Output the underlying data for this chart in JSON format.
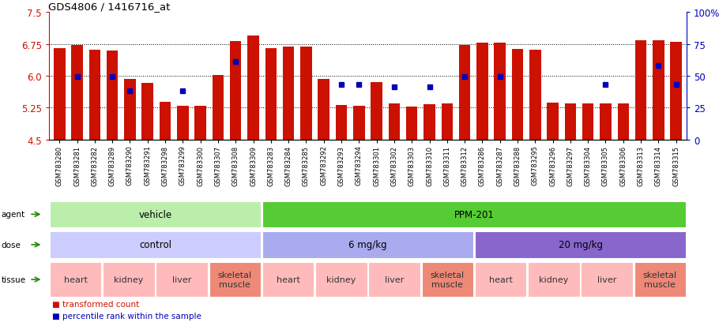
{
  "title": "GDS4806 / 1416716_at",
  "samples": [
    "GSM783280",
    "GSM783281",
    "GSM783282",
    "GSM783289",
    "GSM783290",
    "GSM783291",
    "GSM783298",
    "GSM783299",
    "GSM783300",
    "GSM783307",
    "GSM783308",
    "GSM783309",
    "GSM783283",
    "GSM783284",
    "GSM783285",
    "GSM783292",
    "GSM783293",
    "GSM783294",
    "GSM783301",
    "GSM783302",
    "GSM783303",
    "GSM783310",
    "GSM783311",
    "GSM783312",
    "GSM783286",
    "GSM783287",
    "GSM783288",
    "GSM783295",
    "GSM783296",
    "GSM783297",
    "GSM783304",
    "GSM783305",
    "GSM783306",
    "GSM783313",
    "GSM783314",
    "GSM783315"
  ],
  "bar_values": [
    6.65,
    6.73,
    6.62,
    6.6,
    5.92,
    5.83,
    5.38,
    5.3,
    5.29,
    6.01,
    6.82,
    6.95,
    6.65,
    6.69,
    6.68,
    5.92,
    5.31,
    5.3,
    5.85,
    5.34,
    5.27,
    5.32,
    5.34,
    6.73,
    6.77,
    6.78,
    6.63,
    6.62,
    5.36,
    5.34,
    5.34,
    5.34,
    5.35,
    6.84,
    6.84,
    6.8
  ],
  "percentile_values": [
    null,
    49,
    null,
    49,
    38,
    null,
    null,
    38,
    null,
    null,
    61,
    null,
    null,
    null,
    null,
    null,
    43,
    43,
    null,
    41,
    null,
    41,
    null,
    49,
    null,
    49,
    null,
    null,
    null,
    null,
    null,
    43,
    null,
    null,
    58,
    43
  ],
  "ymin": 4.5,
  "ymax": 7.5,
  "yticks_left": [
    4.5,
    5.25,
    6.0,
    6.75,
    7.5
  ],
  "hlines": [
    5.25,
    6.0,
    6.75
  ],
  "bar_color": "#CC1100",
  "percentile_color": "#0000BB",
  "background_color": "#ffffff",
  "agent_groups": [
    {
      "label": "vehicle",
      "start": 0,
      "end": 11,
      "color": "#BBEEAA"
    },
    {
      "label": "PPM-201",
      "start": 12,
      "end": 35,
      "color": "#55CC33"
    }
  ],
  "dose_groups": [
    {
      "label": "control",
      "start": 0,
      "end": 11,
      "color": "#CCCCFF"
    },
    {
      "label": "6 mg/kg",
      "start": 12,
      "end": 23,
      "color": "#AAAAEE"
    },
    {
      "label": "20 mg/kg",
      "start": 24,
      "end": 35,
      "color": "#8866CC"
    }
  ],
  "tissue_groups": [
    {
      "label": "heart",
      "start": 0,
      "end": 2,
      "color": "#FFBBBB"
    },
    {
      "label": "kidney",
      "start": 3,
      "end": 5,
      "color": "#FFBBBB"
    },
    {
      "label": "liver",
      "start": 6,
      "end": 8,
      "color": "#FFBBBB"
    },
    {
      "label": "skeletal\nmuscle",
      "start": 9,
      "end": 11,
      "color": "#EE8877"
    },
    {
      "label": "heart",
      "start": 12,
      "end": 14,
      "color": "#FFBBBB"
    },
    {
      "label": "kidney",
      "start": 15,
      "end": 17,
      "color": "#FFBBBB"
    },
    {
      "label": "liver",
      "start": 18,
      "end": 20,
      "color": "#FFBBBB"
    },
    {
      "label": "skeletal\nmuscle",
      "start": 21,
      "end": 23,
      "color": "#EE8877"
    },
    {
      "label": "heart",
      "start": 24,
      "end": 26,
      "color": "#FFBBBB"
    },
    {
      "label": "kidney",
      "start": 27,
      "end": 29,
      "color": "#FFBBBB"
    },
    {
      "label": "liver",
      "start": 30,
      "end": 32,
      "color": "#FFBBBB"
    },
    {
      "label": "skeletal\nmuscle",
      "start": 33,
      "end": 35,
      "color": "#EE8877"
    }
  ],
  "row_labels": [
    "agent",
    "dose",
    "tissue"
  ],
  "right_yticks": [
    0,
    25,
    50,
    75,
    100
  ],
  "right_yticklabels": [
    "0",
    "25",
    "50",
    "75",
    "100%"
  ]
}
